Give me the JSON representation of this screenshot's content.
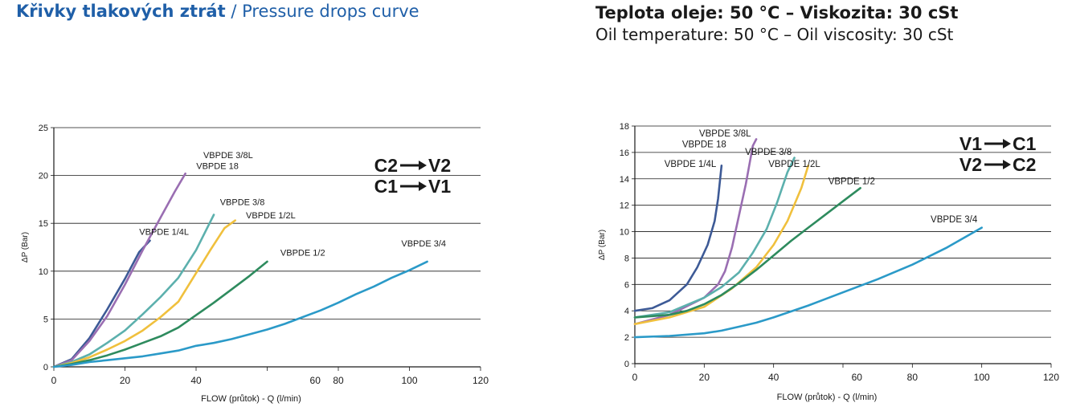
{
  "header": {
    "title_cz": "Křivky tlakových ztrát",
    "title_sep": " / ",
    "title_en": "Pressure drops curve",
    "conditions_cz": "Teplota oleje: 50 °C – Viskozita: 30 cSt",
    "conditions_en": "Oil temperature: 50 °C – Oil viscosity: 30 cSt"
  },
  "chart_data": [
    {
      "type": "line",
      "title": "",
      "xlabel": "FLOW (průtok) - Q (l/min)",
      "ylabel": "ΔP (Bar)",
      "xlim": [
        0,
        120
      ],
      "ylim": [
        0,
        25
      ],
      "x_ticks": [
        "0",
        "20",
        "40",
        "60",
        "80",
        "100",
        "120"
      ],
      "y_ticks": [
        "0",
        "5",
        "10",
        "15",
        "20",
        "25"
      ],
      "grid": "horizontal",
      "direction": [
        "C2",
        "V2",
        "C1",
        "V1"
      ],
      "series": [
        {
          "name": "VBPDE 1/4L",
          "color": "#3d5a96",
          "points": [
            [
              0,
              0
            ],
            [
              5,
              0.8
            ],
            [
              10,
              3
            ],
            [
              15,
              6
            ],
            [
              20,
              9.2
            ],
            [
              24,
              12
            ],
            [
              27,
              13.2
            ]
          ]
        },
        {
          "name": "VBPDE 3/8L / VBPDE 18",
          "color": "#9a6eb2",
          "points": [
            [
              0,
              0
            ],
            [
              5,
              0.7
            ],
            [
              10,
              2.7
            ],
            [
              15,
              5.3
            ],
            [
              20,
              8.6
            ],
            [
              25,
              12.2
            ],
            [
              30,
              15.6
            ],
            [
              34,
              18.3
            ],
            [
              37,
              20.2
            ]
          ]
        },
        {
          "name": "VBPDE 3/8",
          "color": "#5cb0ad",
          "points": [
            [
              0,
              0
            ],
            [
              5,
              0.5
            ],
            [
              10,
              1.3
            ],
            [
              15,
              2.5
            ],
            [
              20,
              3.8
            ],
            [
              25,
              5.5
            ],
            [
              30,
              7.3
            ],
            [
              35,
              9.3
            ],
            [
              40,
              12.2
            ],
            [
              45,
              15.9
            ]
          ]
        },
        {
          "name": "VBPDE 1/2L",
          "color": "#f0c03d",
          "points": [
            [
              0,
              0
            ],
            [
              5,
              0.4
            ],
            [
              10,
              1
            ],
            [
              15,
              1.8
            ],
            [
              20,
              2.7
            ],
            [
              25,
              3.8
            ],
            [
              30,
              5.2
            ],
            [
              35,
              6.8
            ],
            [
              40,
              9.8
            ],
            [
              44,
              12.2
            ],
            [
              48,
              14.5
            ],
            [
              51,
              15.3
            ]
          ]
        },
        {
          "name": "VBPDE 1/2",
          "color": "#2e8b5e",
          "points": [
            [
              0,
              0
            ],
            [
              5,
              0.3
            ],
            [
              10,
              0.7
            ],
            [
              15,
              1.2
            ],
            [
              20,
              1.8
            ],
            [
              25,
              2.5
            ],
            [
              30,
              3.2
            ],
            [
              35,
              4.1
            ],
            [
              40,
              5.4
            ],
            [
              45,
              6.7
            ],
            [
              50,
              8.1
            ],
            [
              55,
              9.5
            ],
            [
              60,
              11
            ]
          ]
        },
        {
          "name": "VBPDE 3/4",
          "color": "#2b9ac8",
          "points": [
            [
              0,
              0
            ],
            [
              5,
              0.2
            ],
            [
              10,
              0.5
            ],
            [
              15,
              0.7
            ],
            [
              20,
              0.9
            ],
            [
              25,
              1.1
            ],
            [
              30,
              1.4
            ],
            [
              35,
              1.7
            ],
            [
              40,
              2.2
            ],
            [
              45,
              2.5
            ],
            [
              50,
              2.9
            ],
            [
              55,
              3.4
            ],
            [
              60,
              3.9
            ],
            [
              65,
              4.5
            ],
            [
              70,
              5.2
            ],
            [
              75,
              5.9
            ],
            [
              80,
              6.7
            ],
            [
              85,
              7.6
            ],
            [
              90,
              8.4
            ],
            [
              95,
              9.3
            ],
            [
              100,
              10.1
            ],
            [
              105,
              11
            ]
          ]
        }
      ],
      "labels": [
        {
          "text": "VBPDE 3/8L",
          "x": 49,
          "y": 21.8
        },
        {
          "text": "VBPDE 18",
          "x": 46,
          "y": 20.7
        },
        {
          "text": "VBPDE 3/8",
          "x": 53,
          "y": 16.9
        },
        {
          "text": "VBPDE 1/2L",
          "x": 61,
          "y": 15.5
        },
        {
          "text": "VBPDE 1/4L",
          "x": 31,
          "y": 13.8
        },
        {
          "text": "VBPDE 1/2",
          "x": 70,
          "y": 11.6
        },
        {
          "text": "VBPDE 3/4",
          "x": 104,
          "y": 12.6
        }
      ]
    },
    {
      "type": "line",
      "title": "",
      "xlabel": "FLOW (průtok) - Q (l/min)",
      "ylabel": "ΔP (Bar)",
      "xlim": [
        0,
        120
      ],
      "ylim": [
        0,
        18
      ],
      "x_ticks": [
        "0",
        "20",
        "40",
        "60",
        "80",
        "100",
        "120"
      ],
      "y_ticks": [
        "0",
        "2",
        "4",
        "6",
        "8",
        "10",
        "12",
        "14",
        "16",
        "18"
      ],
      "grid": "horizontal",
      "direction": [
        "V1",
        "C1",
        "V2",
        "C2"
      ],
      "series": [
        {
          "name": "VBPDE 1/4L",
          "color": "#3d5a96",
          "points": [
            [
              0,
              4
            ],
            [
              5,
              4.2
            ],
            [
              10,
              4.8
            ],
            [
              15,
              6
            ],
            [
              18,
              7.3
            ],
            [
              21,
              9
            ],
            [
              23,
              10.8
            ],
            [
              24,
              12.5
            ],
            [
              25,
              15
            ]
          ]
        },
        {
          "name": "VBPDE 3/8L / VBPDE 18",
          "color": "#9a6eb2",
          "points": [
            [
              0,
              3
            ],
            [
              10,
              3.7
            ],
            [
              20,
              5
            ],
            [
              24,
              6
            ],
            [
              26,
              7
            ],
            [
              28,
              8.8
            ],
            [
              30,
              11.2
            ],
            [
              32,
              13.6
            ],
            [
              34,
              16.5
            ],
            [
              35,
              17
            ]
          ]
        },
        {
          "name": "VBPDE 3/8",
          "color": "#5cb0ad",
          "points": [
            [
              0,
              3.5
            ],
            [
              10,
              3.9
            ],
            [
              20,
              5
            ],
            [
              25,
              5.8
            ],
            [
              30,
              6.9
            ],
            [
              34,
              8.4
            ],
            [
              38,
              10.2
            ],
            [
              41,
              12.2
            ],
            [
              44,
              14.5
            ],
            [
              46,
              15.6
            ]
          ]
        },
        {
          "name": "VBPDE 1/2L",
          "color": "#f0c03d",
          "points": [
            [
              0,
              3
            ],
            [
              10,
              3.5
            ],
            [
              20,
              4.3
            ],
            [
              28,
              5.7
            ],
            [
              35,
              7.3
            ],
            [
              40,
              9
            ],
            [
              44,
              10.8
            ],
            [
              48,
              13.3
            ],
            [
              50,
              15
            ]
          ]
        },
        {
          "name": "VBPDE 1/2",
          "color": "#2e8b5e",
          "points": [
            [
              0,
              3.5
            ],
            [
              10,
              3.7
            ],
            [
              15,
              4
            ],
            [
              20,
              4.5
            ],
            [
              25,
              5.2
            ],
            [
              30,
              6.1
            ],
            [
              35,
              7.1
            ],
            [
              40,
              8.2
            ],
            [
              45,
              9.3
            ],
            [
              50,
              10.3
            ],
            [
              55,
              11.3
            ],
            [
              60,
              12.3
            ],
            [
              65,
              13.3
            ]
          ]
        },
        {
          "name": "VBPDE 3/4",
          "color": "#2b9ac8",
          "points": [
            [
              0,
              2
            ],
            [
              10,
              2.1
            ],
            [
              20,
              2.3
            ],
            [
              25,
              2.5
            ],
            [
              30,
              2.8
            ],
            [
              35,
              3.1
            ],
            [
              40,
              3.5
            ],
            [
              50,
              4.4
            ],
            [
              60,
              5.4
            ],
            [
              70,
              6.4
            ],
            [
              80,
              7.5
            ],
            [
              90,
              8.8
            ],
            [
              100,
              10.3
            ]
          ]
        }
      ],
      "labels": [
        {
          "text": "VBPDE 3/8L",
          "x": 26,
          "y": 17.2
        },
        {
          "text": "VBPDE 18",
          "x": 20,
          "y": 16.4
        },
        {
          "text": "VBPDE 3/8",
          "x": 38.5,
          "y": 15.8
        },
        {
          "text": "VBPDE 1/2L",
          "x": 46,
          "y": 14.9
        },
        {
          "text": "VBPDE 1/4L",
          "x": 16,
          "y": 14.9
        },
        {
          "text": "VBPDE 1/2",
          "x": 62.5,
          "y": 13.6
        },
        {
          "text": "VBPDE 3/4",
          "x": 92,
          "y": 10.7
        }
      ]
    }
  ]
}
